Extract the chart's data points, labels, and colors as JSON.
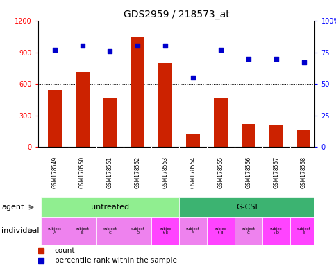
{
  "title": "GDS2959 / 218573_at",
  "samples": [
    "GSM178549",
    "GSM178550",
    "GSM178551",
    "GSM178552",
    "GSM178553",
    "GSM178554",
    "GSM178555",
    "GSM178556",
    "GSM178557",
    "GSM178558"
  ],
  "counts": [
    540,
    710,
    460,
    1050,
    800,
    120,
    460,
    220,
    215,
    165
  ],
  "percentiles": [
    77,
    80,
    76,
    80,
    80,
    55,
    77,
    70,
    70,
    67
  ],
  "ylim_left": [
    0,
    1200
  ],
  "ylim_right": [
    0,
    100
  ],
  "yticks_left": [
    0,
    300,
    600,
    900,
    1200
  ],
  "yticks_right": [
    0,
    25,
    50,
    75,
    100
  ],
  "ytick_labels_right": [
    "0",
    "25",
    "50",
    "75",
    "100%"
  ],
  "groups": [
    {
      "label": "untreated",
      "start": 0,
      "end": 5,
      "color": "#90EE90"
    },
    {
      "label": "G-CSF",
      "start": 5,
      "end": 10,
      "color": "#3CB371"
    }
  ],
  "individuals": [
    "subject\nA",
    "subject\nB",
    "subject\nC",
    "subject\nD",
    "subjec\nt E",
    "subject\nA",
    "subjec\nt B",
    "subject\nC",
    "subjec\nt D",
    "subject\nE"
  ],
  "ind_highlight": [
    false,
    false,
    false,
    false,
    true,
    false,
    true,
    false,
    true,
    true
  ],
  "ind_color_normal": "#EE82EE",
  "ind_color_highlight": "#FF44FF",
  "bar_color": "#CC2200",
  "dot_color": "#0000CC",
  "tick_bg_color": "#CCCCCC",
  "background_color": "#FFFFFF",
  "bar_width": 0.5,
  "legend_count": "count",
  "legend_pct": "percentile rank within the sample",
  "agent_label": "agent",
  "individual_label": "individual",
  "xlim": [
    -0.6,
    9.4
  ]
}
